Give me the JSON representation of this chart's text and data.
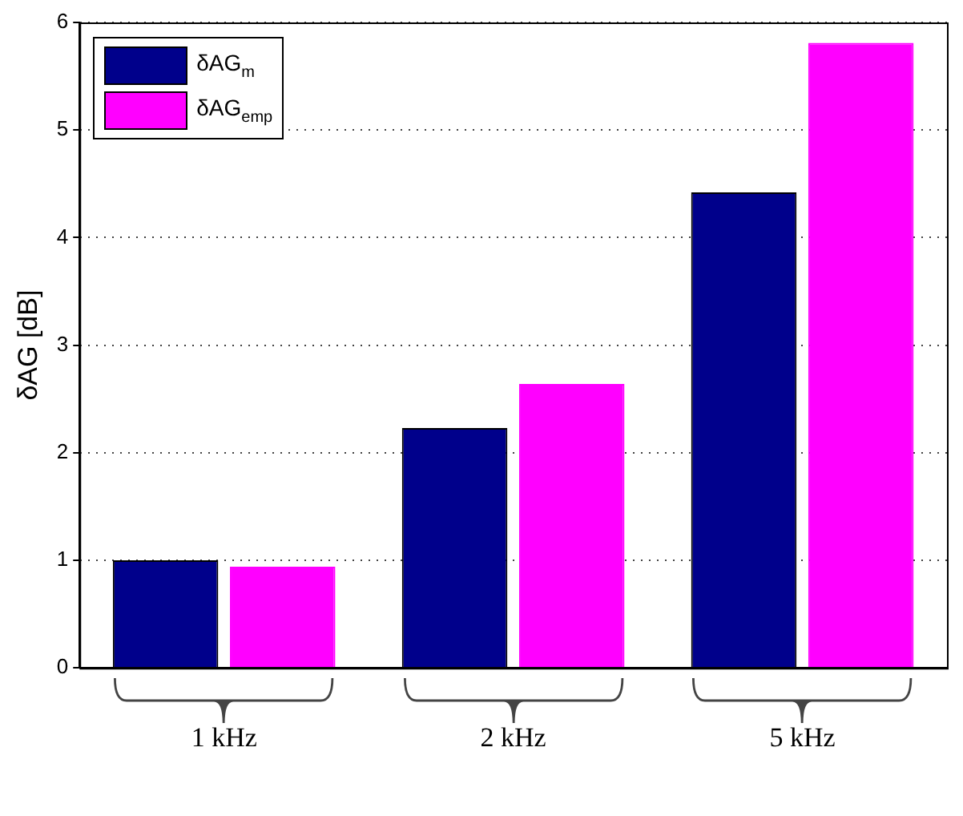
{
  "chart_data": {
    "type": "bar",
    "ylabel": "δAG [dB]",
    "categories": [
      "1 kHz",
      "2 kHz",
      "5 kHz"
    ],
    "series": [
      {
        "name": "δAG$_{m}$",
        "color": "#00008b",
        "values": [
          1.0,
          2.23,
          4.42
        ]
      },
      {
        "name": "δAG$_{emp}$",
        "color": "#ff00ff",
        "values": [
          0.94,
          2.64,
          5.81
        ]
      }
    ],
    "ylim": [
      0,
      6
    ],
    "yticks": [
      0,
      1,
      2,
      3,
      4,
      5,
      6
    ],
    "grid": "y",
    "legend": "top left"
  }
}
